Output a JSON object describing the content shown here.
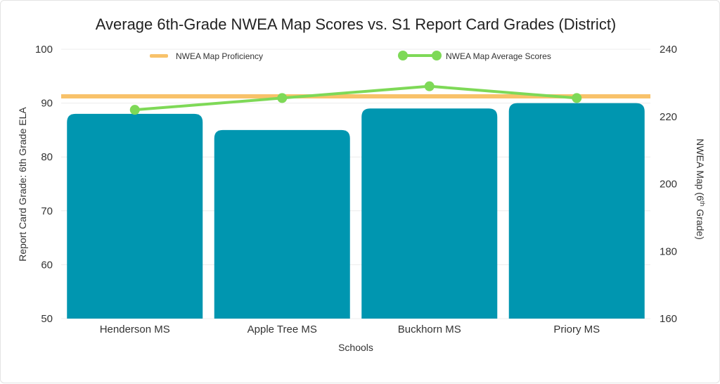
{
  "chart_data": {
    "type": "bar",
    "title": "Average 6th-Grade NWEA Map Scores vs. S1 Report Card Grades (District)",
    "xlabel": "Schools",
    "ylabel": "Report Card Grade: 6th Grade ELA",
    "y2label_pre": "NWEA Map (6",
    "y2label_sup": "th",
    "y2label_post": " Grade)",
    "categories": [
      "Henderson MS",
      "Apple Tree MS",
      "Buckhorn MS",
      "Priory MS"
    ],
    "ylim": [
      50,
      100
    ],
    "yticks": [
      "50",
      "60",
      "70",
      "80",
      "90",
      "100"
    ],
    "y2lim": [
      160,
      240
    ],
    "y2ticks": [
      "160",
      "180",
      "200",
      "220",
      "240"
    ],
    "grid": true,
    "legend_position": "top",
    "series": [
      {
        "kind": "bar",
        "axis": "left",
        "values": [
          88,
          85,
          89,
          90
        ],
        "color": "#0096b0"
      },
      {
        "kind": "line",
        "axis": "right",
        "name": "NWEA Map Average Scores",
        "values": [
          222,
          225.5,
          229,
          225.5
        ],
        "color": "#7ed957"
      },
      {
        "kind": "reference-line",
        "axis": "right",
        "name": "NWEA Map Proficiency",
        "value": 226,
        "color": "#f8c26a"
      }
    ]
  }
}
